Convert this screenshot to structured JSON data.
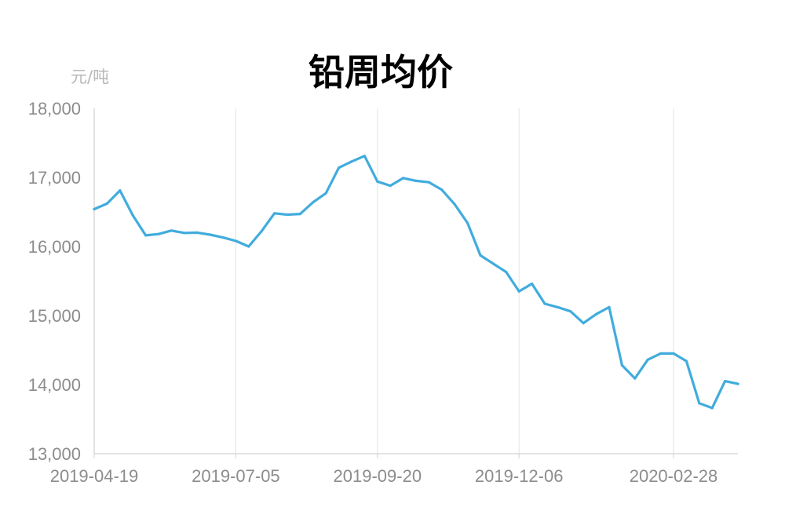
{
  "chart_data": {
    "type": "line",
    "title": "铅周均价",
    "ylabel": "元/吨",
    "xlabel": "",
    "ylim": [
      13000,
      18000
    ],
    "y_ticks": [
      "13,000",
      "14,000",
      "15,000",
      "16,000",
      "17,000",
      "18,000"
    ],
    "y_tick_values": [
      13000,
      14000,
      15000,
      16000,
      17000,
      18000
    ],
    "x_ticks": [
      "2019-04-19",
      "2019-07-05",
      "2019-09-20",
      "2019-12-06",
      "2020-02-28"
    ],
    "x_tick_index": [
      0,
      11,
      22,
      33,
      45
    ],
    "vertical_grid": true,
    "horizontal_grid": false,
    "line_color": "#41ACDD",
    "series": [
      {
        "values": [
          16540,
          16620,
          16810,
          16450,
          16160,
          16180,
          16230,
          16195,
          16200,
          16170,
          16130,
          16080,
          16000,
          16220,
          16480,
          16460,
          16470,
          16640,
          16770,
          17140,
          17230,
          17310,
          16940,
          16880,
          16990,
          16950,
          16930,
          16820,
          16610,
          16340,
          15870,
          15750,
          15630,
          15350,
          15460,
          15170,
          15120,
          15060,
          14890,
          15020,
          15120,
          14280,
          14090,
          14360,
          14450,
          14450,
          14340,
          13730,
          13660,
          14050,
          14010
        ]
      }
    ]
  }
}
